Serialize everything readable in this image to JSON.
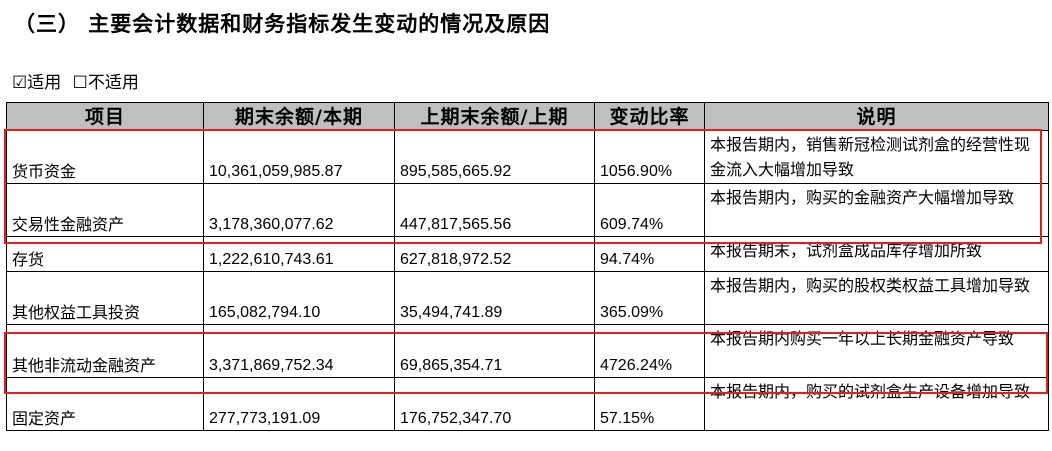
{
  "heading": "（三） 主要会计数据和财务指标发生变动的情况及原因",
  "applicability": {
    "applicable": "☑适用",
    "not_applicable": "☐不适用"
  },
  "table": {
    "headers": [
      "项目",
      "期末余额/本期",
      "上期末余额/上期",
      "变动比率",
      "说明"
    ],
    "rows": [
      {
        "item": "货币资金",
        "current": "10,361,059,985.87",
        "previous": "895,585,665.92",
        "ratio": "1056.90%",
        "note": "本报告期内，销售新冠检测试剂盒的经营性现金流入大幅增加导致"
      },
      {
        "item": "交易性金融资产",
        "current": "3,178,360,077.62",
        "previous": "447,817,565.56",
        "ratio": "609.74%",
        "note": "本报告期内，购买的金融资产大幅增加导致"
      },
      {
        "item": "存货",
        "current": "1,222,610,743.61",
        "previous": "627,818,972.52",
        "ratio": "94.74%",
        "note": "本报告期末，试剂盒成品库存增加所致"
      },
      {
        "item": "其他权益工具投资",
        "current": "165,082,794.10",
        "previous": "35,494,741.89",
        "ratio": "365.09%",
        "note": "本报告期内，购买的股权类权益工具增加导致"
      },
      {
        "item": "其他非流动金融资产",
        "current": "3,371,869,752.34",
        "previous": "69,865,354.71",
        "ratio": "4726.24%",
        "note": "本报告期内购买一年以上长期金融资产导致"
      },
      {
        "item": "固定资产",
        "current": "277,773,191.09",
        "previous": "176,752,347.70",
        "ratio": "57.15%",
        "note": "本报告期内，购买的试剂盒生产设备增加导致"
      }
    ]
  },
  "highlight_color": "#e02020"
}
